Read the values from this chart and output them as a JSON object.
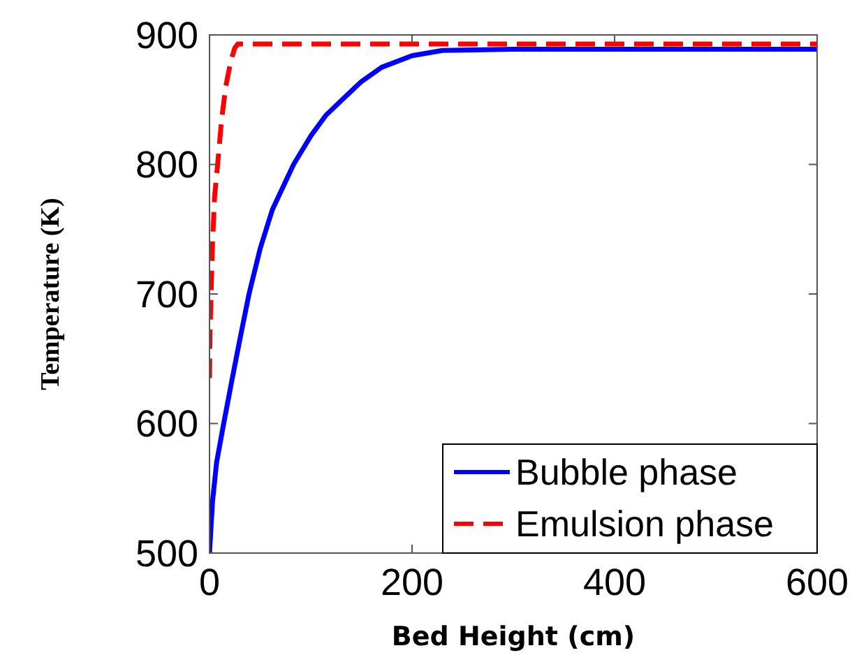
{
  "chart_data": {
    "type": "line",
    "xlabel": "Bed Height (cm)",
    "ylabel": "Temperature (K)",
    "xlim": [
      0,
      600
    ],
    "ylim": [
      500,
      900
    ],
    "xticks": [
      0,
      200,
      400,
      600
    ],
    "yticks": [
      500,
      600,
      700,
      800,
      900
    ],
    "grid": false,
    "legend": "bottom right",
    "series": [
      {
        "name": "Bubble phase",
        "color": "#0000ff",
        "line_style": "solid",
        "x": [
          0,
          3,
          7,
          14,
          22,
          30,
          39,
          50,
          62,
          83,
          100,
          115,
          131,
          150,
          170,
          200,
          230,
          300,
          400,
          500,
          600
        ],
        "values": [
          500,
          540,
          570,
          600,
          633,
          665,
          700,
          735,
          765,
          800,
          822,
          838,
          850,
          864,
          875,
          884,
          888,
          889,
          889,
          889,
          889
        ]
      },
      {
        "name": "Emulsion phase",
        "color": "#ff0000",
        "line_style": "dashed",
        "x": [
          0,
          0.5,
          1.5,
          3,
          5,
          8,
          12,
          16,
          21,
          25,
          28,
          40,
          100,
          200,
          300,
          400,
          500,
          600
        ],
        "values": [
          635,
          670,
          700,
          740,
          775,
          800,
          835,
          860,
          880,
          890,
          893,
          893,
          893,
          893,
          893,
          893,
          893,
          893
        ]
      }
    ]
  }
}
